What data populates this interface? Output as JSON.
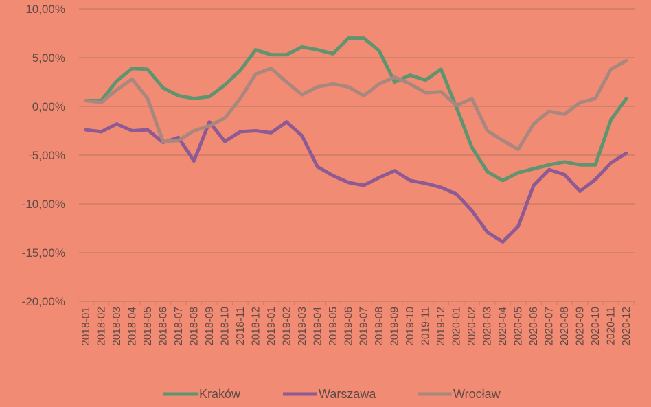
{
  "chart_data": {
    "type": "line",
    "title": "",
    "xlabel": "",
    "ylabel": "",
    "ylim": [
      -20,
      10
    ],
    "yticks": [
      10,
      5,
      0,
      -5,
      -10,
      -15,
      -20
    ],
    "ytick_labels": [
      "10,00%",
      "5,00%",
      "0,00%",
      "-5,00%",
      "-10,00%",
      "-15,00%",
      "-20,00%"
    ],
    "grid": true,
    "legend_position": "bottom",
    "x": [
      "2018-01",
      "2018-02",
      "2018-03",
      "2018-04",
      "2018-05",
      "2018-06",
      "2018-07",
      "2018-08",
      "2018-09",
      "2018-10",
      "2018-11",
      "2018-12",
      "2019-01",
      "2019-02",
      "2019-03",
      "2019-04",
      "2019-05",
      "2019-06",
      "2019-07",
      "2019-08",
      "2019-09",
      "2019-10",
      "2019-11",
      "2019-12",
      "2020-01",
      "2020-02",
      "2020-03",
      "2020-04",
      "2020-05",
      "2020-06",
      "2020-07",
      "2020-08",
      "2020-09",
      "2020-10",
      "2020-11",
      "2020-12"
    ],
    "series": [
      {
        "name": "Kraków",
        "color": "#5E9470",
        "values": [
          0.6,
          0.6,
          2.6,
          3.9,
          3.8,
          1.9,
          1.1,
          0.8,
          1.0,
          2.2,
          3.7,
          5.8,
          5.3,
          5.3,
          6.1,
          5.8,
          5.4,
          7.0,
          7.0,
          5.7,
          2.5,
          3.2,
          2.7,
          3.8,
          -0.1,
          -4.2,
          -6.7,
          -7.6,
          -6.8,
          -6.4,
          -6.0,
          -5.7,
          -6.0,
          -6.0,
          -1.4,
          0.8
        ]
      },
      {
        "name": "Warszawa",
        "color": "#8E5A94",
        "values": [
          -2.4,
          -2.6,
          -1.8,
          -2.5,
          -2.4,
          -3.7,
          -3.2,
          -5.6,
          -1.6,
          -3.6,
          -2.6,
          -2.5,
          -2.7,
          -1.6,
          -3.0,
          -6.2,
          -7.1,
          -7.8,
          -8.1,
          -7.3,
          -6.6,
          -7.6,
          -7.9,
          -8.3,
          -9.0,
          -10.7,
          -12.9,
          -13.9,
          -12.3,
          -8.1,
          -6.5,
          -7.0,
          -8.7,
          -7.5,
          -5.8,
          -4.8
        ]
      },
      {
        "name": "Wrocław",
        "color": "#A8877E",
        "values": [
          0.6,
          0.4,
          1.7,
          2.8,
          0.8,
          -3.6,
          -3.5,
          -2.5,
          -2.0,
          -1.2,
          0.8,
          3.3,
          3.9,
          2.5,
          1.2,
          2.0,
          2.3,
          2.0,
          1.1,
          2.3,
          3.0,
          2.3,
          1.4,
          1.5,
          0.1,
          0.8,
          -2.5,
          -3.5,
          -4.4,
          -1.8,
          -0.5,
          -0.8,
          0.4,
          0.8,
          3.8,
          4.7
        ]
      }
    ]
  }
}
